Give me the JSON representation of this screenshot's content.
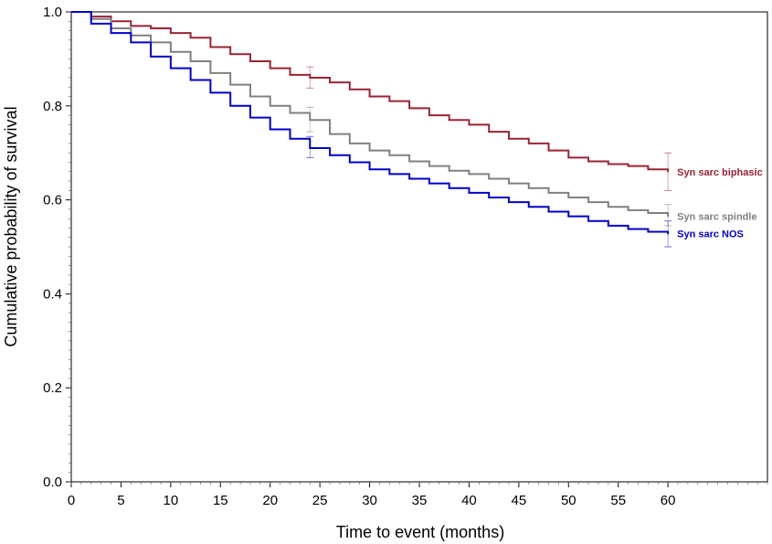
{
  "chart_data": {
    "type": "line",
    "xlabel": "Time to event (months)",
    "ylabel": "Cumulative probability of survival",
    "xlim": [
      0,
      70
    ],
    "ylim": [
      0,
      1
    ],
    "x_ticks": [
      "0",
      "5",
      "10",
      "15",
      "20",
      "25",
      "30",
      "35",
      "40",
      "45",
      "50",
      "55",
      "60"
    ],
    "y_ticks": [
      "0.0",
      "0.2",
      "0.4",
      "0.6",
      "0.8",
      "1.0"
    ],
    "grid": false,
    "legend": "labels at right end of each curve",
    "series": [
      {
        "name": "Syn sarc biphasic",
        "color": "#9b2335",
        "x": [
          0,
          2,
          4,
          6,
          8,
          10,
          12,
          14,
          16,
          18,
          20,
          22,
          24,
          26,
          28,
          30,
          32,
          34,
          36,
          38,
          40,
          42,
          44,
          46,
          48,
          50,
          52,
          54,
          56,
          58,
          60
        ],
        "y": [
          1.0,
          0.99,
          0.98,
          0.97,
          0.965,
          0.955,
          0.945,
          0.925,
          0.91,
          0.895,
          0.88,
          0.866,
          0.86,
          0.85,
          0.835,
          0.82,
          0.81,
          0.795,
          0.78,
          0.77,
          0.76,
          0.745,
          0.73,
          0.72,
          0.705,
          0.69,
          0.682,
          0.676,
          0.672,
          0.665,
          0.66
        ],
        "ci_at_x": [
          24,
          60
        ],
        "ci": [
          [
            0.838,
            0.883
          ],
          [
            0.62,
            0.7
          ]
        ]
      },
      {
        "name": "Syn sarc spindle",
        "color": "#808080",
        "x": [
          0,
          2,
          4,
          6,
          8,
          10,
          12,
          14,
          16,
          18,
          20,
          22,
          24,
          26,
          28,
          30,
          32,
          34,
          36,
          38,
          40,
          42,
          44,
          46,
          48,
          50,
          52,
          54,
          56,
          58,
          60
        ],
        "y": [
          1.0,
          0.985,
          0.965,
          0.95,
          0.935,
          0.915,
          0.895,
          0.87,
          0.845,
          0.82,
          0.8,
          0.785,
          0.77,
          0.74,
          0.72,
          0.705,
          0.695,
          0.682,
          0.672,
          0.662,
          0.655,
          0.645,
          0.635,
          0.625,
          0.615,
          0.605,
          0.595,
          0.585,
          0.578,
          0.572,
          0.565
        ],
        "ci_at_x": [
          24,
          60
        ],
        "ci": [
          [
            0.745,
            0.797
          ],
          [
            0.545,
            0.59
          ]
        ]
      },
      {
        "name": "Syn sarc NOS",
        "color": "#0000cc",
        "x": [
          0,
          2,
          4,
          6,
          8,
          10,
          12,
          14,
          16,
          18,
          20,
          22,
          24,
          26,
          28,
          30,
          32,
          34,
          36,
          38,
          40,
          42,
          44,
          46,
          48,
          50,
          52,
          54,
          56,
          58,
          60
        ],
        "y": [
          1.0,
          0.975,
          0.955,
          0.935,
          0.905,
          0.88,
          0.855,
          0.828,
          0.8,
          0.775,
          0.75,
          0.73,
          0.71,
          0.695,
          0.68,
          0.665,
          0.655,
          0.645,
          0.635,
          0.625,
          0.615,
          0.605,
          0.595,
          0.585,
          0.575,
          0.565,
          0.555,
          0.545,
          0.538,
          0.532,
          0.528
        ],
        "ci_at_x": [
          24,
          60
        ],
        "ci": [
          [
            0.69,
            0.735
          ],
          [
            0.5,
            0.555
          ]
        ]
      }
    ]
  }
}
